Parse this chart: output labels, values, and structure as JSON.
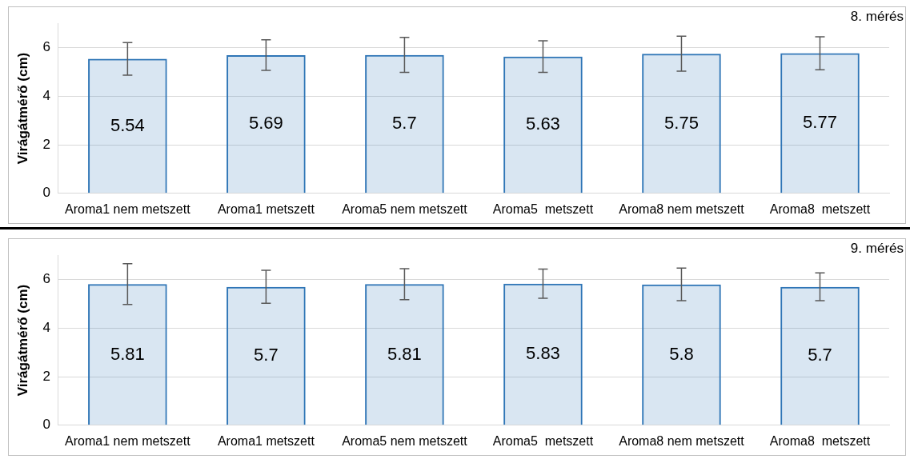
{
  "chart_data": [
    {
      "type": "bar",
      "annotations": [
        "8. mérés"
      ],
      "ylabel": "Virágátmérő (cm)",
      "categories": [
        "Aroma1 nem metszett",
        "Aroma1 metszett",
        "Aroma5 nem metszett",
        "Aroma5  metszett",
        "Aroma8 nem metszett",
        "Aroma8  metszett"
      ],
      "values": [
        5.54,
        5.69,
        5.7,
        5.63,
        5.75,
        5.77
      ],
      "errors": [
        0.67,
        0.63,
        0.72,
        0.65,
        0.72,
        0.68
      ],
      "color": "#2e75b6",
      "data_labels": true,
      "ylim": [
        0,
        7
      ],
      "yticks": [
        0,
        2,
        4,
        6
      ],
      "grid": "y"
    },
    {
      "type": "bar",
      "annotations": [
        "9. mérés"
      ],
      "ylabel": "Virágátmérő (cm)",
      "categories": [
        "Aroma1 nem metszett",
        "Aroma1 metszett",
        "Aroma5 nem metszett",
        "Aroma5  metszett",
        "Aroma8 nem metszett",
        "Aroma8  metszett"
      ],
      "values": [
        5.81,
        5.7,
        5.81,
        5.83,
        5.8,
        5.7
      ],
      "errors": [
        0.84,
        0.68,
        0.64,
        0.6,
        0.67,
        0.57
      ],
      "color": "#2e75b6",
      "data_labels": true,
      "ylim": [
        0,
        7
      ],
      "yticks": [
        0,
        2,
        4,
        6
      ],
      "grid": "y"
    }
  ]
}
